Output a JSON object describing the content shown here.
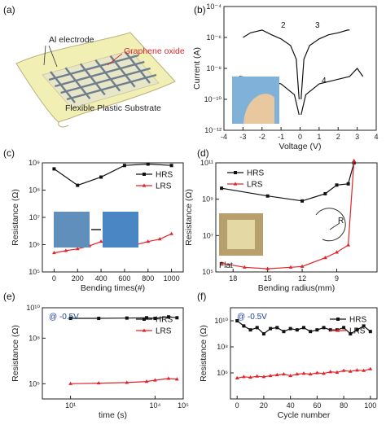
{
  "panel_labels": [
    "(a)",
    "(b)",
    "(c)",
    "(d)",
    "(e)",
    "(f)"
  ],
  "panel_a": {
    "electrode_label": "Al electrode",
    "oxide_label": "Graphene oxide",
    "substrate_label": "Flexible Plastic Substrate",
    "colors": {
      "oxide_label": "#d9262b",
      "substrate": "#f1efb4",
      "electrodes": "#6f7e8c"
    }
  },
  "chart_data": [
    {
      "panel": "(b)",
      "type": "line",
      "xlabel": "Voltage (V)",
      "ylabel": "Current (A)",
      "xlim": [
        -4,
        4
      ],
      "ylim": [
        1e-12,
        0.0001
      ],
      "ylog": true,
      "xticks": [
        "-4",
        "-3",
        "-2",
        "-1",
        "0",
        "1",
        "2",
        "3",
        "4"
      ],
      "yticks": [
        "10⁻¹²",
        "10⁻¹⁰",
        "10⁻⁸",
        "10⁻⁶",
        "10⁻⁴"
      ],
      "sweep_labels": [
        "1",
        "2",
        "3",
        "4"
      ],
      "series": [
        {
          "name": "",
          "x": [
            -3.0,
            -2.6,
            -2.0,
            -1.5,
            -1.0,
            -0.5,
            -0.2,
            -0.05
          ],
          "y": [
            1e-06,
            2e-06,
            3e-06,
            1.5e-06,
            8e-07,
            3e-07,
            4e-08,
            1e-10
          ]
        },
        {
          "name": "",
          "x": [
            0.05,
            0.2,
            0.5,
            1.0,
            1.5,
            2.0,
            2.5,
            2.6
          ],
          "y": [
            1e-10,
            4e-08,
            3e-07,
            8e-07,
            1.5e-06,
            2e-06,
            3e-06,
            3e-06
          ]
        },
        {
          "name": "",
          "x": [
            -3.2,
            -2.0,
            -1.0,
            -0.3,
            -0.05
          ],
          "y": [
            3e-09,
            2e-09,
            1e-09,
            2e-10,
            1e-11
          ]
        },
        {
          "name": "",
          "x": [
            0.05,
            0.3,
            1.0,
            2.0,
            2.6,
            3.0,
            3.3
          ],
          "y": [
            1e-11,
            2e-10,
            1e-09,
            2e-09,
            3e-09,
            1e-08,
            3e-09
          ]
        }
      ]
    },
    {
      "panel": "(c)",
      "type": "line",
      "xlabel": "Bending times(#)",
      "ylabel": "Resistance (Ω)",
      "xlim": [
        -100,
        1100
      ],
      "ylim": [
        100000.0,
        1000000000.0
      ],
      "ylog": true,
      "xticks": [
        "0",
        "200",
        "400",
        "600",
        "800",
        "1000"
      ],
      "yticks": [
        "10⁵",
        "10⁶",
        "10⁷",
        "10⁸",
        "10⁹"
      ],
      "series": [
        {
          "name": "HRS",
          "x": [
            0,
            200,
            400,
            600,
            800,
            1000
          ],
          "y": [
            600000000.0,
            150000000.0,
            300000000.0,
            800000000.0,
            900000000.0,
            800000000.0
          ]
        },
        {
          "name": "LRS",
          "x": [
            0,
            100,
            200,
            300,
            400,
            500,
            600,
            700,
            800,
            900,
            1000
          ],
          "y": [
            500000.0,
            600000.0,
            700000.0,
            900000.0,
            1300000.0,
            1000000.0,
            1100000.0,
            1000000.0,
            1300000.0,
            1600000.0,
            2500000.0
          ]
        }
      ]
    },
    {
      "panel": "(d)",
      "type": "line",
      "xlabel": "Bending radius(mm)",
      "ylabel": "Resistance (Ω)",
      "xlim": [
        19.5,
        5.5
      ],
      "ylim": [
        100000.0,
        100000000000.0
      ],
      "ylog": true,
      "xticks": [
        "18",
        "15",
        "12",
        "9"
      ],
      "yticks": [
        "10⁵",
        "10⁷",
        "10⁹",
        "10¹¹"
      ],
      "flat_label": "Flat",
      "radius_label": "R",
      "series": [
        {
          "name": "HRS",
          "x": [
            19,
            15,
            12,
            10,
            9,
            8,
            7.5
          ],
          "y": [
            4000000000.0,
            1500000000.0,
            800000000.0,
            2000000000.0,
            6000000000.0,
            7000000000.0,
            100000000000.0
          ]
        },
        {
          "name": "LRS",
          "x": [
            19,
            17,
            15,
            13,
            12,
            10,
            9,
            8,
            7.5
          ],
          "y": [
            300000.0,
            180000.0,
            150000.0,
            180000.0,
            200000.0,
            600000.0,
            1200000.0,
            3000000.0,
            130000000000.0
          ]
        }
      ]
    },
    {
      "panel": "(e)",
      "type": "line",
      "xlabel": "time (s)",
      "ylabel": "Resistance (Ω)",
      "xlim": [
        1,
        100000.0
      ],
      "xlog": true,
      "ylim": [
        10000.0,
        10000000000.0
      ],
      "ylog": true,
      "xticks": [
        "10¹",
        "10⁴",
        "10⁵"
      ],
      "yticks": [
        "10⁵",
        "10⁸",
        "10¹⁰"
      ],
      "annotation": "@ -0.5V",
      "series": [
        {
          "name": "HRS",
          "x": [
            10,
            100,
            1000,
            5000,
            10000,
            30000,
            60000
          ],
          "y": [
            2000000000.0,
            2000000000.0,
            2100000000.0,
            2200000000.0,
            2000000000.0,
            2500000000.0,
            2200000000.0
          ]
        },
        {
          "name": "LRS",
          "x": [
            10,
            100,
            1000,
            5000,
            10000,
            30000,
            60000
          ],
          "y": [
            100000.0,
            110000.0,
            120000.0,
            140000.0,
            170000.0,
            220000.0,
            200000.0
          ]
        }
      ]
    },
    {
      "panel": "(f)",
      "type": "line",
      "xlabel": "Cycle number",
      "ylabel": "Resistance (Ω)",
      "xlim": [
        -5,
        105
      ],
      "ylim": [
        10000.0,
        100000000000.0
      ],
      "ylog": true,
      "xticks": [
        "0",
        "20",
        "40",
        "60",
        "80",
        "100"
      ],
      "yticks": [
        "10⁶",
        "10⁸",
        "10¹⁰"
      ],
      "annotation": "@ -0.5V",
      "series": [
        {
          "name": "HRS",
          "x": [
            0,
            5,
            10,
            15,
            20,
            25,
            30,
            35,
            40,
            45,
            50,
            55,
            60,
            65,
            70,
            75,
            80,
            85,
            90,
            95,
            100
          ],
          "y": [
            10000000000.0,
            4000000000.0,
            2000000000.0,
            3000000000.0,
            1000000000.0,
            2500000000.0,
            3000000000.0,
            1500000000.0,
            2500000000.0,
            2000000000.0,
            3000000000.0,
            1500000000.0,
            2000000000.0,
            3000000000.0,
            2000000000.0,
            2000000000.0,
            3000000000.0,
            1000000000.0,
            2000000000.0,
            4000000000.0,
            1500000000.0
          ]
        },
        {
          "name": "LRS",
          "x": [
            0,
            5,
            10,
            15,
            20,
            25,
            30,
            35,
            40,
            45,
            50,
            55,
            60,
            65,
            70,
            75,
            80,
            85,
            90,
            95,
            100
          ],
          "y": [
            400000.0,
            500000.0,
            450000.0,
            550000.0,
            500000.0,
            600000.0,
            700000.0,
            800000.0,
            600000.0,
            800000.0,
            900000.0,
            800000.0,
            1000000.0,
            900000.0,
            1200000.0,
            1100000.0,
            1500000.0,
            1300000.0,
            1600000.0,
            1500000.0,
            2000000.0
          ]
        }
      ]
    }
  ],
  "style": {
    "hrs_color": "#111111",
    "lrs_color": "#e3232a",
    "annotation_color": "#1a3f9a"
  }
}
